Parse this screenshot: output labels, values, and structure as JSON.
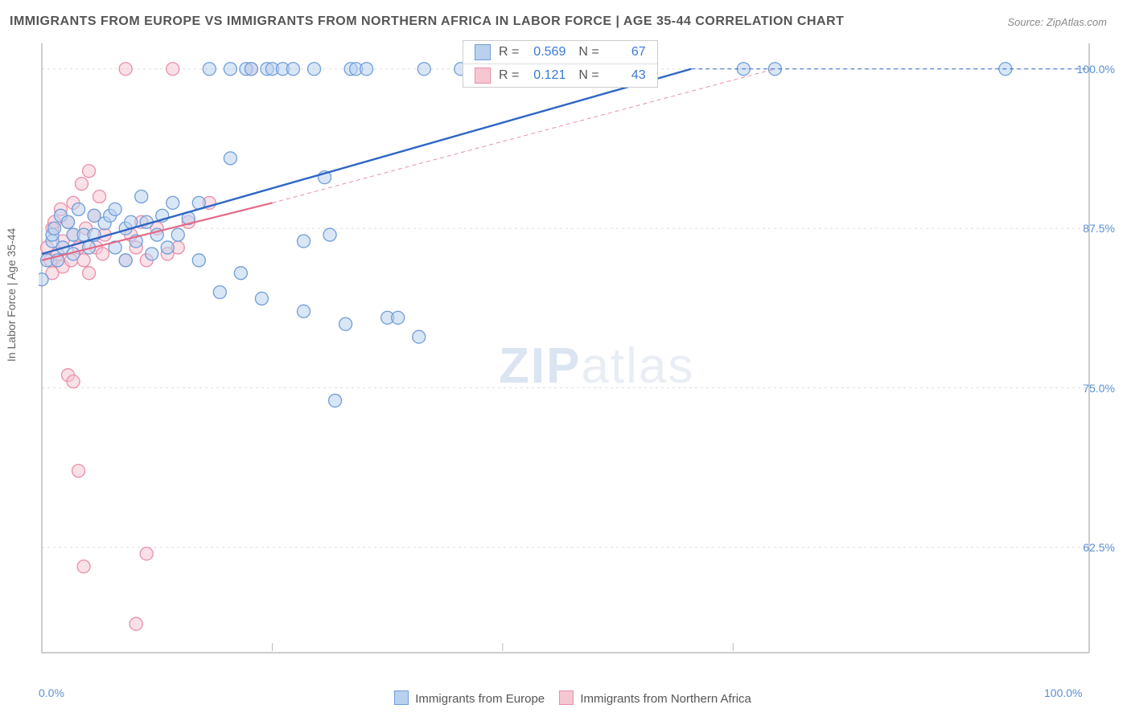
{
  "title": "IMMIGRANTS FROM EUROPE VS IMMIGRANTS FROM NORTHERN AFRICA IN LABOR FORCE | AGE 35-44 CORRELATION CHART",
  "source_prefix": "Source: ",
  "source_link": "ZipAtlas.com",
  "y_axis_label": "In Labor Force | Age 35-44",
  "watermark": {
    "part1": "ZIP",
    "part2": "atlas"
  },
  "chart": {
    "type": "scatter",
    "background_color": "#ffffff",
    "grid_color": "#dddddd",
    "axis_line_color": "#bbbbbb",
    "tick_label_color": "#5a8fd6",
    "tick_fontsize": 14,
    "title_fontsize": 16,
    "title_color": "#555555",
    "xlim": [
      0,
      100
    ],
    "ylim": [
      55,
      102
    ],
    "x_ticks": [
      {
        "value": 0,
        "label": "0.0%"
      },
      {
        "value": 100,
        "label": "100.0%"
      }
    ],
    "x_minor_ticks": [
      22,
      44,
      66
    ],
    "y_ticks": [
      {
        "value": 100,
        "label": "100.0%"
      },
      {
        "value": 87.5,
        "label": "87.5%"
      },
      {
        "value": 75,
        "label": "75.0%"
      },
      {
        "value": 62.5,
        "label": "62.5%"
      }
    ],
    "series": [
      {
        "id": "europe",
        "label": "Immigrants from Europe",
        "marker_fill": "#b9d1ee",
        "marker_stroke": "#6f9ed9",
        "marker_fill_opacity": 0.55,
        "marker_radius": 8,
        "trend": {
          "solid": {
            "x1": 0,
            "y1": 85.5,
            "x2": 62,
            "y2": 100,
            "color": "#2f66c4",
            "width": 2.4
          },
          "dashed": {
            "x1": 62,
            "y1": 100,
            "x2": 100,
            "y2": 100,
            "color": "#2f66c4",
            "width": 1,
            "dash": "5,4"
          }
        },
        "points": [
          [
            0,
            83.5
          ],
          [
            0.5,
            85
          ],
          [
            1,
            86.5
          ],
          [
            1,
            87
          ],
          [
            1.2,
            87.5
          ],
          [
            1.5,
            85
          ],
          [
            1.8,
            88.5
          ],
          [
            2,
            86
          ],
          [
            2.5,
            88
          ],
          [
            3,
            87
          ],
          [
            3,
            85.5
          ],
          [
            3.5,
            89
          ],
          [
            4,
            87
          ],
          [
            4.5,
            86
          ],
          [
            5,
            88.5
          ],
          [
            5,
            87
          ],
          [
            6,
            87.9
          ],
          [
            6.5,
            88.5
          ],
          [
            7,
            86
          ],
          [
            7,
            89
          ],
          [
            8,
            87.5
          ],
          [
            8,
            85
          ],
          [
            8.5,
            88
          ],
          [
            9,
            86.5
          ],
          [
            9.5,
            90
          ],
          [
            10,
            88
          ],
          [
            10.5,
            85.5
          ],
          [
            11,
            87
          ],
          [
            11.5,
            88.5
          ],
          [
            12,
            86
          ],
          [
            12.5,
            89.5
          ],
          [
            13,
            87
          ],
          [
            14,
            88.3
          ],
          [
            15,
            85
          ],
          [
            15,
            89.5
          ],
          [
            16,
            100
          ],
          [
            17,
            82.5
          ],
          [
            18,
            100
          ],
          [
            18,
            93
          ],
          [
            19,
            84
          ],
          [
            19.5,
            100
          ],
          [
            20,
            100
          ],
          [
            21,
            82
          ],
          [
            21.5,
            100
          ],
          [
            22,
            100
          ],
          [
            23,
            100
          ],
          [
            24,
            100
          ],
          [
            25,
            86.5
          ],
          [
            25,
            81
          ],
          [
            26,
            100
          ],
          [
            27,
            91.5
          ],
          [
            27.5,
            87
          ],
          [
            28,
            74
          ],
          [
            29,
            80
          ],
          [
            29.5,
            100
          ],
          [
            30,
            100
          ],
          [
            31,
            100
          ],
          [
            33,
            80.5
          ],
          [
            34,
            80.5
          ],
          [
            36,
            79
          ],
          [
            36.5,
            100
          ],
          [
            40,
            100
          ],
          [
            45,
            100
          ],
          [
            51,
            100
          ],
          [
            67,
            100
          ],
          [
            70,
            100
          ],
          [
            92,
            100
          ]
        ]
      },
      {
        "id": "nafrica",
        "label": "Immigrants from Northern Africa",
        "marker_fill": "#f6c7d3",
        "marker_stroke": "#e98fa8",
        "marker_fill_opacity": 0.55,
        "marker_radius": 8,
        "trend": {
          "solid": {
            "x1": 0,
            "y1": 85,
            "x2": 22,
            "y2": 89.5,
            "color": "#e36a87",
            "width": 2.2
          },
          "dashed": {
            "x1": 22,
            "y1": 89.5,
            "x2": 70,
            "y2": 100,
            "color": "#e98fa8",
            "width": 1,
            "dash": "5,4"
          }
        },
        "points": [
          [
            0.5,
            86
          ],
          [
            0.8,
            85
          ],
          [
            1,
            87.5
          ],
          [
            1,
            84
          ],
          [
            1.2,
            88
          ],
          [
            1.5,
            85.5
          ],
          [
            1.8,
            89
          ],
          [
            2,
            86.5
          ],
          [
            2,
            84.5
          ],
          [
            2.5,
            88
          ],
          [
            2.8,
            85
          ],
          [
            3,
            87
          ],
          [
            3,
            89.5
          ],
          [
            3.5,
            86
          ],
          [
            3.8,
            91
          ],
          [
            4,
            85
          ],
          [
            4.2,
            87.5
          ],
          [
            4.5,
            84
          ],
          [
            5,
            88.5
          ],
          [
            5.2,
            86
          ],
          [
            5.5,
            90
          ],
          [
            2.5,
            76
          ],
          [
            3,
            75.5
          ],
          [
            3.5,
            68.5
          ],
          [
            5.8,
            85.5
          ],
          [
            6,
            87
          ],
          [
            8,
            85
          ],
          [
            4.5,
            92
          ],
          [
            8,
            100
          ],
          [
            8.5,
            87
          ],
          [
            9,
            86
          ],
          [
            9.5,
            88
          ],
          [
            10,
            62
          ],
          [
            10,
            85
          ],
          [
            11,
            87.5
          ],
          [
            12,
            85.5
          ],
          [
            12.5,
            100
          ],
          [
            13,
            86
          ],
          [
            14,
            88
          ],
          [
            4,
            61
          ],
          [
            16,
            89.5
          ],
          [
            9,
            56.5
          ],
          [
            20,
            100
          ]
        ]
      }
    ],
    "stats_box": {
      "border_color": "#cccccc",
      "rows": [
        {
          "swatch_fill": "#b9d1ee",
          "swatch_stroke": "#6f9ed9",
          "r_label": "R =",
          "r_value": "0.569",
          "n_label": "N =",
          "n_value": "67"
        },
        {
          "swatch_fill": "#f6c7d3",
          "swatch_stroke": "#e98fa8",
          "r_label": "R =",
          "r_value": "0.121",
          "n_label": "N =",
          "n_value": "43"
        }
      ]
    },
    "bottom_legend": [
      {
        "swatch_fill": "#b9d1ee",
        "swatch_stroke": "#6f9ed9",
        "label": "Immigrants from Europe"
      },
      {
        "swatch_fill": "#f6c7d3",
        "swatch_stroke": "#e98fa8",
        "label": "Immigrants from Northern Africa"
      }
    ]
  }
}
